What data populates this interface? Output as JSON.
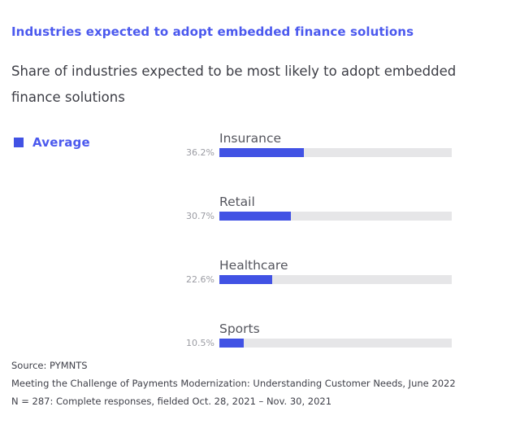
{
  "header": {
    "title": "Industries expected to adopt embedded finance solutions",
    "subtitle": "Share of industries expected to be most likely to adopt embedded finance solutions"
  },
  "legend": {
    "label": "Average",
    "marker_color": "#4152e4"
  },
  "chart_data": {
    "type": "bar",
    "orientation": "horizontal",
    "title": "Industries expected to adopt embedded finance solutions",
    "subtitle": "Share of industries expected to be most likely to adopt embedded finance solutions",
    "series_name": "Average",
    "categories": [
      "Insurance",
      "Retail",
      "Healthcare",
      "Sports"
    ],
    "values": [
      36.2,
      30.7,
      22.6,
      10.5
    ],
    "value_labels": [
      "36.2%",
      "30.7%",
      "22.6%",
      "10.5%"
    ],
    "xlim": [
      0,
      100
    ],
    "grid": false,
    "legend_position": "top-left",
    "bar_color": "#4152e4",
    "track_color": "#e6e6e8",
    "title_color": "#4b59ee"
  },
  "footer": {
    "lines": [
      "Source: PYMNTS",
      "Meeting the Challenge of Payments Modernization: Understanding Customer Needs, June 2022",
      "N = 287: Complete responses, fielded Oct. 28, 2021 – Nov. 30, 2021"
    ]
  }
}
